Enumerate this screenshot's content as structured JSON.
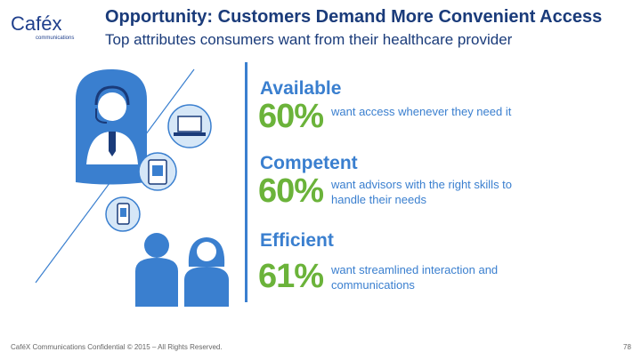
{
  "logo": {
    "name": "Caféx",
    "sub": "communications"
  },
  "title": "Opportunity: Customers Demand More Convenient Access",
  "subtitle": "Top attributes consumers want from their healthcare provider",
  "attributes": [
    {
      "heading": "Available",
      "percent": "60%",
      "text": "want access whenever they need it"
    },
    {
      "heading": "Competent",
      "percent": "60%",
      "text": "want advisors with the right skills to handle their needs"
    },
    {
      "heading": "Efficient",
      "percent": "61%",
      "text": "want streamlined interaction and communications"
    }
  ],
  "footer": "CaféX Communications Confidential © 2015 – All Rights Reserved.",
  "page_number": "78",
  "colors": {
    "blue": "#3a7fcf",
    "green": "#6bb33a",
    "navy": "#1a3b7a"
  }
}
